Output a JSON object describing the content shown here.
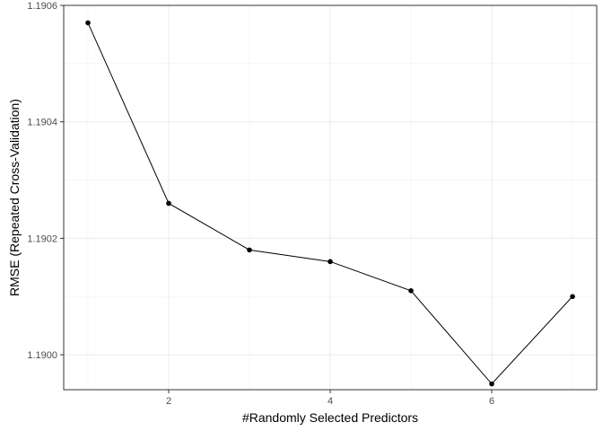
{
  "chart_data": {
    "type": "line",
    "title": "",
    "xlabel": "#Randomly Selected Predictors",
    "ylabel": "RMSE (Repeated Cross-Validation)",
    "xlim": [
      0.7,
      7.3
    ],
    "ylim": [
      1.18994,
      1.1906
    ],
    "x_ticks": [
      2,
      4,
      6
    ],
    "y_ticks": [
      1.19,
      1.1902,
      1.1904,
      1.1906
    ],
    "x_tick_labels": [
      "2",
      "4",
      "6"
    ],
    "y_tick_labels": [
      "1.1900",
      "1.1902",
      "1.1904",
      "1.1906"
    ],
    "grid": true,
    "series": [
      {
        "x": [
          1,
          2,
          3,
          4,
          5,
          6,
          7
        ],
        "y": [
          1.19057,
          1.19026,
          1.19018,
          1.19016,
          1.19011,
          1.18995,
          1.1901
        ],
        "color": "#000000",
        "markers": true
      }
    ]
  }
}
